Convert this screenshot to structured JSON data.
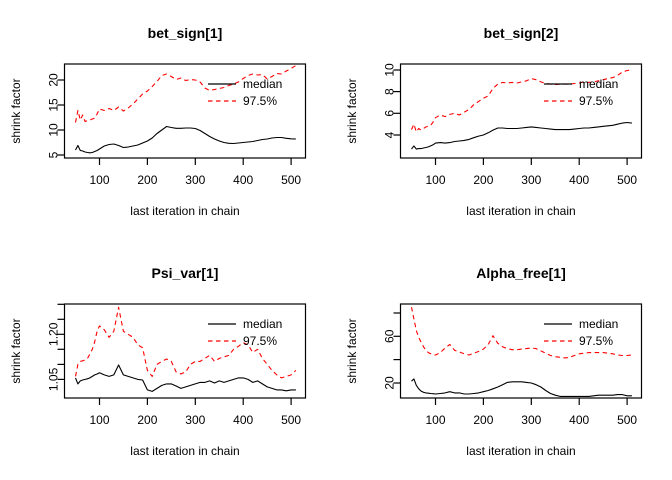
{
  "figure": {
    "background": "#ffffff",
    "layout": "2x2-grid",
    "plot_type": "gelman-rubin-shrink-factor-diagnostic"
  },
  "palette": {
    "median": "#000000",
    "upper_quantile": "#ff0000"
  },
  "chart_data": [
    {
      "type": "line",
      "title": "bet_sign[1]",
      "xlabel": "last iteration in chain",
      "ylabel": "shrink factor",
      "xlim": [
        27,
        530
      ],
      "ylim": [
        4.4,
        23.2
      ],
      "grid": false,
      "legend_position": "top-right-inside",
      "x_ticks": [
        {
          "v": 100,
          "label": "100"
        },
        {
          "v": 200,
          "label": "200"
        },
        {
          "v": 300,
          "label": "300"
        },
        {
          "v": 400,
          "label": "400"
        },
        {
          "v": 500,
          "label": "500"
        }
      ],
      "y_ticks": [
        {
          "v": 5,
          "label": "5"
        },
        {
          "v": 10,
          "label": "10"
        },
        {
          "v": 15,
          "label": "15"
        },
        {
          "v": 20,
          "label": "20"
        }
      ],
      "x": [
        50,
        55,
        60,
        65,
        70,
        75,
        80,
        85,
        90,
        95,
        100,
        110,
        120,
        130,
        140,
        150,
        160,
        170,
        180,
        190,
        200,
        210,
        220,
        230,
        240,
        250,
        260,
        270,
        280,
        290,
        300,
        310,
        320,
        330,
        340,
        350,
        360,
        370,
        380,
        390,
        400,
        410,
        420,
        430,
        440,
        450,
        460,
        470,
        480,
        490,
        500,
        510
      ],
      "series": [
        {
          "name": "median",
          "color": "#000000",
          "dash": false,
          "values": [
            6.0,
            6.9,
            5.9,
            5.8,
            5.6,
            5.5,
            5.45,
            5.5,
            5.7,
            5.9,
            6.2,
            6.8,
            7.1,
            7.2,
            6.9,
            6.5,
            6.6,
            6.8,
            7.0,
            7.4,
            7.8,
            8.4,
            9.3,
            10.0,
            10.7,
            10.5,
            10.35,
            10.35,
            10.4,
            10.4,
            10.3,
            9.9,
            9.3,
            8.7,
            8.2,
            7.8,
            7.5,
            7.35,
            7.3,
            7.4,
            7.5,
            7.6,
            7.7,
            7.9,
            8.1,
            8.2,
            8.4,
            8.5,
            8.5,
            8.35,
            8.25,
            8.2
          ]
        },
        {
          "name": "97.5%",
          "color": "#ff0000",
          "dash": true,
          "values": [
            11.5,
            13.9,
            12.0,
            13.0,
            11.7,
            11.9,
            12.0,
            12.2,
            12.4,
            13.2,
            14.2,
            13.9,
            14.3,
            13.9,
            14.6,
            13.8,
            14.4,
            15.2,
            16.2,
            17.2,
            17.8,
            18.7,
            19.7,
            20.9,
            21.2,
            20.7,
            20.1,
            20.4,
            19.9,
            20.1,
            20.0,
            19.6,
            18.4,
            17.9,
            18.1,
            18.3,
            18.5,
            18.9,
            19.2,
            19.6,
            20.3,
            20.9,
            21.2,
            21.0,
            21.1,
            20.2,
            20.7,
            21.3,
            21.2,
            21.8,
            22.3,
            22.9
          ]
        }
      ]
    },
    {
      "type": "line",
      "title": "bet_sign[2]",
      "xlabel": "last iteration in chain",
      "ylabel": "shrink factor",
      "xlim": [
        27,
        530
      ],
      "ylim": [
        1.88,
        10.55
      ],
      "grid": false,
      "legend_position": "top-right-inside",
      "x_ticks": [
        {
          "v": 100,
          "label": "100"
        },
        {
          "v": 200,
          "label": "200"
        },
        {
          "v": 300,
          "label": "300"
        },
        {
          "v": 400,
          "label": "400"
        },
        {
          "v": 500,
          "label": "500"
        }
      ],
      "y_ticks": [
        {
          "v": 4,
          "label": "4"
        },
        {
          "v": 6,
          "label": "6"
        },
        {
          "v": 8,
          "label": "8"
        },
        {
          "v": 10,
          "label": "10"
        }
      ],
      "x": [
        50,
        55,
        60,
        65,
        70,
        75,
        80,
        85,
        90,
        95,
        100,
        110,
        120,
        130,
        140,
        150,
        160,
        170,
        180,
        190,
        200,
        210,
        220,
        230,
        240,
        250,
        260,
        270,
        280,
        290,
        300,
        310,
        320,
        330,
        340,
        350,
        360,
        370,
        380,
        390,
        400,
        410,
        420,
        430,
        440,
        450,
        460,
        470,
        480,
        490,
        500,
        510
      ],
      "series": [
        {
          "name": "median",
          "color": "#000000",
          "dash": false,
          "values": [
            2.7,
            3.0,
            2.7,
            2.75,
            2.75,
            2.8,
            2.85,
            2.9,
            3.0,
            3.1,
            3.25,
            3.3,
            3.25,
            3.3,
            3.4,
            3.45,
            3.5,
            3.6,
            3.75,
            3.9,
            4.0,
            4.2,
            4.45,
            4.65,
            4.65,
            4.6,
            4.6,
            4.6,
            4.65,
            4.7,
            4.75,
            4.7,
            4.65,
            4.6,
            4.55,
            4.5,
            4.5,
            4.5,
            4.5,
            4.55,
            4.6,
            4.65,
            4.65,
            4.7,
            4.75,
            4.8,
            4.85,
            4.9,
            5.0,
            5.1,
            5.15,
            5.1
          ]
        },
        {
          "name": "97.5%",
          "color": "#ff0000",
          "dash": true,
          "values": [
            4.5,
            5.0,
            4.3,
            4.6,
            4.45,
            4.6,
            4.75,
            4.8,
            4.9,
            5.2,
            5.6,
            5.85,
            5.7,
            5.9,
            6.0,
            5.85,
            6.1,
            6.35,
            6.8,
            7.1,
            7.4,
            7.6,
            8.3,
            8.7,
            8.85,
            8.8,
            8.85,
            8.8,
            8.9,
            9.0,
            9.2,
            9.1,
            8.9,
            8.75,
            8.7,
            8.65,
            8.7,
            8.7,
            8.7,
            8.75,
            8.8,
            8.9,
            8.85,
            8.9,
            9.0,
            9.1,
            9.2,
            9.3,
            9.5,
            9.8,
            9.95,
            10.0
          ]
        }
      ]
    },
    {
      "type": "line",
      "title": "Psi_var[1]",
      "xlabel": "last iteration in chain",
      "ylabel": "shrink factor",
      "xlim": [
        27,
        530
      ],
      "ylim": [
        0.988,
        1.301
      ],
      "grid": false,
      "legend_position": "top-right-inside",
      "x_ticks": [
        {
          "v": 100,
          "label": "100"
        },
        {
          "v": 200,
          "label": "200"
        },
        {
          "v": 300,
          "label": "300"
        },
        {
          "v": 400,
          "label": "400"
        },
        {
          "v": 500,
          "label": "500"
        }
      ],
      "y_ticks": [
        {
          "v": 1.05,
          "label": "1.05"
        },
        {
          "v": 1.1,
          "label": ""
        },
        {
          "v": 1.15,
          "label": ""
        },
        {
          "v": 1.2,
          "label": "1.20"
        },
        {
          "v": 1.25,
          "label": ""
        },
        {
          "v": 1.3,
          "label": ""
        }
      ],
      "x": [
        50,
        55,
        60,
        65,
        70,
        75,
        80,
        85,
        90,
        95,
        100,
        110,
        120,
        130,
        140,
        150,
        160,
        170,
        180,
        190,
        200,
        210,
        220,
        230,
        240,
        250,
        260,
        270,
        280,
        290,
        300,
        310,
        320,
        330,
        340,
        350,
        360,
        370,
        380,
        390,
        400,
        410,
        420,
        430,
        440,
        450,
        460,
        470,
        480,
        490,
        500,
        510
      ],
      "series": [
        {
          "name": "median",
          "color": "#000000",
          "dash": false,
          "values": [
            1.055,
            1.035,
            1.045,
            1.048,
            1.05,
            1.052,
            1.055,
            1.06,
            1.065,
            1.068,
            1.072,
            1.065,
            1.06,
            1.065,
            1.098,
            1.065,
            1.06,
            1.055,
            1.05,
            1.048,
            1.015,
            1.01,
            1.02,
            1.03,
            1.035,
            1.035,
            1.028,
            1.02,
            1.025,
            1.03,
            1.035,
            1.04,
            1.04,
            1.045,
            1.038,
            1.045,
            1.04,
            1.045,
            1.05,
            1.055,
            1.055,
            1.05,
            1.04,
            1.045,
            1.035,
            1.025,
            1.02,
            1.015,
            1.015,
            1.012,
            1.015,
            1.015
          ]
        },
        {
          "name": "97.5%",
          "color": "#ff0000",
          "dash": true,
          "values": [
            1.06,
            1.1,
            1.11,
            1.112,
            1.115,
            1.12,
            1.135,
            1.15,
            1.175,
            1.21,
            1.228,
            1.215,
            1.19,
            1.21,
            1.29,
            1.21,
            1.2,
            1.19,
            1.165,
            1.155,
            1.08,
            1.06,
            1.1,
            1.11,
            1.118,
            1.11,
            1.075,
            1.068,
            1.075,
            1.1,
            1.11,
            1.11,
            1.12,
            1.13,
            1.11,
            1.12,
            1.125,
            1.13,
            1.15,
            1.16,
            1.172,
            1.165,
            1.14,
            1.15,
            1.12,
            1.1,
            1.08,
            1.065,
            1.055,
            1.06,
            1.065,
            1.08
          ]
        }
      ]
    },
    {
      "type": "line",
      "title": "Alpha_free[1]",
      "xlabel": "last iteration in chain",
      "ylabel": "shrink factor",
      "xlim": [
        27,
        530
      ],
      "ylim": [
        7.1,
        87.7
      ],
      "grid": false,
      "legend_position": "top-right-inside",
      "x_ticks": [
        {
          "v": 100,
          "label": "100"
        },
        {
          "v": 200,
          "label": "200"
        },
        {
          "v": 300,
          "label": "300"
        },
        {
          "v": 400,
          "label": "400"
        },
        {
          "v": 500,
          "label": "500"
        }
      ],
      "y_ticks": [
        {
          "v": 20,
          "label": "20"
        },
        {
          "v": 40,
          "label": ""
        },
        {
          "v": 60,
          "label": "60"
        },
        {
          "v": 80,
          "label": ""
        }
      ],
      "x": [
        50,
        55,
        60,
        65,
        70,
        75,
        80,
        85,
        90,
        95,
        100,
        110,
        120,
        130,
        140,
        150,
        160,
        170,
        180,
        190,
        200,
        210,
        220,
        230,
        240,
        250,
        260,
        270,
        280,
        290,
        300,
        310,
        320,
        330,
        340,
        350,
        360,
        370,
        380,
        390,
        400,
        410,
        420,
        430,
        440,
        450,
        460,
        470,
        480,
        490,
        500,
        510
      ],
      "series": [
        {
          "name": "median",
          "color": "#000000",
          "dash": false,
          "values": [
            21.5,
            23.5,
            18.0,
            15.0,
            13.0,
            12.0,
            11.5,
            11.2,
            11.0,
            10.8,
            10.5,
            11.0,
            11.5,
            12.5,
            11.5,
            11.5,
            10.5,
            10.5,
            11.0,
            11.5,
            12.5,
            13.5,
            15.0,
            16.5,
            18.5,
            20.5,
            21.0,
            21.0,
            21.0,
            20.5,
            20.0,
            18.5,
            16.5,
            13.5,
            11.0,
            9.5,
            8.5,
            8.5,
            8.5,
            8.5,
            8.5,
            8.5,
            8.5,
            9.0,
            9.5,
            9.5,
            9.5,
            9.5,
            10.0,
            10.0,
            9.0,
            9.0
          ]
        },
        {
          "name": "97.5%",
          "color": "#ff0000",
          "dash": true,
          "values": [
            85,
            75,
            65,
            59,
            55,
            51,
            48,
            46,
            45,
            44,
            44,
            46,
            50,
            53,
            48,
            46.5,
            45,
            44,
            45.5,
            47,
            49,
            53,
            60.5,
            54,
            51,
            49.5,
            48.5,
            48.5,
            49,
            49.5,
            50,
            49.5,
            47.5,
            45.5,
            43.5,
            42.5,
            42,
            41.5,
            42,
            43.5,
            45,
            45.5,
            46,
            46,
            46,
            46,
            45.5,
            45,
            44,
            43.5,
            43.5,
            44
          ]
        }
      ]
    }
  ]
}
